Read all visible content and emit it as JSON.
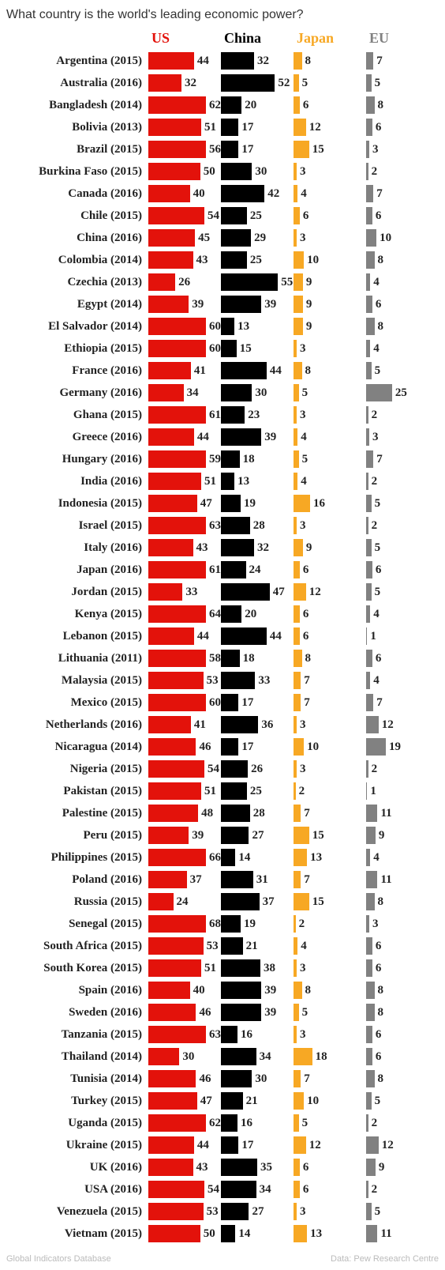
{
  "title": "What country is the world's leading economic power?",
  "footer_left": "Global Indicators Database",
  "footer_right": "Data: Pew Research Centre",
  "chart": {
    "type": "bar",
    "max_value": 70,
    "background_color": "#ffffff",
    "label_fontsize": 15,
    "header_fontsize": 18,
    "series": [
      {
        "key": "us",
        "label": "US",
        "color": "#e3120b",
        "header_color": "#e3120b"
      },
      {
        "key": "china",
        "label": "China",
        "color": "#000000",
        "header_color": "#000000"
      },
      {
        "key": "japan",
        "label": "Japan",
        "color": "#f7a824",
        "header_color": "#f7a824"
      },
      {
        "key": "eu",
        "label": "EU",
        "color": "#818181",
        "header_color": "#818181"
      }
    ],
    "rows": [
      {
        "label": "Argentina (2015)",
        "us": 44,
        "china": 32,
        "japan": 8,
        "eu": 7
      },
      {
        "label": "Australia (2016)",
        "us": 32,
        "china": 52,
        "japan": 5,
        "eu": 5
      },
      {
        "label": "Bangladesh (2014)",
        "us": 62,
        "china": 20,
        "japan": 6,
        "eu": 8
      },
      {
        "label": "Bolivia (2013)",
        "us": 51,
        "china": 17,
        "japan": 12,
        "eu": 6
      },
      {
        "label": "Brazil (2015)",
        "us": 56,
        "china": 17,
        "japan": 15,
        "eu": 3
      },
      {
        "label": "Burkina Faso (2015)",
        "us": 50,
        "china": 30,
        "japan": 3,
        "eu": 2
      },
      {
        "label": "Canada (2016)",
        "us": 40,
        "china": 42,
        "japan": 4,
        "eu": 7
      },
      {
        "label": "Chile (2015)",
        "us": 54,
        "china": 25,
        "japan": 6,
        "eu": 6
      },
      {
        "label": "China (2016)",
        "us": 45,
        "china": 29,
        "japan": 3,
        "eu": 10
      },
      {
        "label": "Colombia (2014)",
        "us": 43,
        "china": 25,
        "japan": 10,
        "eu": 8
      },
      {
        "label": "Czechia (2013)",
        "us": 26,
        "china": 55,
        "japan": 9,
        "eu": 4
      },
      {
        "label": "Egypt (2014)",
        "us": 39,
        "china": 39,
        "japan": 9,
        "eu": 6
      },
      {
        "label": "El Salvador (2014)",
        "us": 60,
        "china": 13,
        "japan": 9,
        "eu": 8
      },
      {
        "label": "Ethiopia (2015)",
        "us": 60,
        "china": 15,
        "japan": 3,
        "eu": 4
      },
      {
        "label": "France (2016)",
        "us": 41,
        "china": 44,
        "japan": 8,
        "eu": 5
      },
      {
        "label": "Germany (2016)",
        "us": 34,
        "china": 30,
        "japan": 5,
        "eu": 25
      },
      {
        "label": "Ghana (2015)",
        "us": 61,
        "china": 23,
        "japan": 3,
        "eu": 2
      },
      {
        "label": "Greece (2016)",
        "us": 44,
        "china": 39,
        "japan": 4,
        "eu": 3
      },
      {
        "label": "Hungary (2016)",
        "us": 59,
        "china": 18,
        "japan": 5,
        "eu": 7
      },
      {
        "label": "India (2016)",
        "us": 51,
        "china": 13,
        "japan": 4,
        "eu": 2
      },
      {
        "label": "Indonesia (2015)",
        "us": 47,
        "china": 19,
        "japan": 16,
        "eu": 5
      },
      {
        "label": "Israel (2015)",
        "us": 63,
        "china": 28,
        "japan": 3,
        "eu": 2
      },
      {
        "label": "Italy (2016)",
        "us": 43,
        "china": 32,
        "japan": 9,
        "eu": 5
      },
      {
        "label": "Japan (2016)",
        "us": 61,
        "china": 24,
        "japan": 6,
        "eu": 6
      },
      {
        "label": "Jordan (2015)",
        "us": 33,
        "china": 47,
        "japan": 12,
        "eu": 5
      },
      {
        "label": "Kenya (2015)",
        "us": 64,
        "china": 20,
        "japan": 6,
        "eu": 4
      },
      {
        "label": "Lebanon (2015)",
        "us": 44,
        "china": 44,
        "japan": 6,
        "eu": 1
      },
      {
        "label": "Lithuania (2011)",
        "us": 58,
        "china": 18,
        "japan": 8,
        "eu": 6
      },
      {
        "label": "Malaysia (2015)",
        "us": 53,
        "china": 33,
        "japan": 7,
        "eu": 4
      },
      {
        "label": "Mexico (2015)",
        "us": 60,
        "china": 17,
        "japan": 7,
        "eu": 7
      },
      {
        "label": "Netherlands (2016)",
        "us": 41,
        "china": 36,
        "japan": 3,
        "eu": 12
      },
      {
        "label": "Nicaragua (2014)",
        "us": 46,
        "china": 17,
        "japan": 10,
        "eu": 19
      },
      {
        "label": "Nigeria (2015)",
        "us": 54,
        "china": 26,
        "japan": 3,
        "eu": 2
      },
      {
        "label": "Pakistan (2015)",
        "us": 51,
        "china": 25,
        "japan": 2,
        "eu": 1
      },
      {
        "label": "Palestine (2015)",
        "us": 48,
        "china": 28,
        "japan": 7,
        "eu": 11
      },
      {
        "label": "Peru (2015)",
        "us": 39,
        "china": 27,
        "japan": 15,
        "eu": 9
      },
      {
        "label": "Philippines (2015)",
        "us": 66,
        "china": 14,
        "japan": 13,
        "eu": 4
      },
      {
        "label": "Poland (2016)",
        "us": 37,
        "china": 31,
        "japan": 7,
        "eu": 11
      },
      {
        "label": "Russia (2015)",
        "us": 24,
        "china": 37,
        "japan": 15,
        "eu": 8
      },
      {
        "label": "Senegal (2015)",
        "us": 68,
        "china": 19,
        "japan": 2,
        "eu": 3
      },
      {
        "label": "South Africa (2015)",
        "us": 53,
        "china": 21,
        "japan": 4,
        "eu": 6
      },
      {
        "label": "South Korea (2015)",
        "us": 51,
        "china": 38,
        "japan": 3,
        "eu": 6
      },
      {
        "label": "Spain (2016)",
        "us": 40,
        "china": 39,
        "japan": 8,
        "eu": 8
      },
      {
        "label": "Sweden (2016)",
        "us": 46,
        "china": 39,
        "japan": 5,
        "eu": 8
      },
      {
        "label": "Tanzania (2015)",
        "us": 63,
        "china": 16,
        "japan": 3,
        "eu": 6
      },
      {
        "label": "Thailand (2014)",
        "us": 30,
        "china": 34,
        "japan": 18,
        "eu": 6
      },
      {
        "label": "Tunisia (2014)",
        "us": 46,
        "china": 30,
        "japan": 7,
        "eu": 8
      },
      {
        "label": "Turkey (2015)",
        "us": 47,
        "china": 21,
        "japan": 10,
        "eu": 5
      },
      {
        "label": "Uganda (2015)",
        "us": 62,
        "china": 16,
        "japan": 5,
        "eu": 2
      },
      {
        "label": "Ukraine (2015)",
        "us": 44,
        "china": 17,
        "japan": 12,
        "eu": 12
      },
      {
        "label": "UK (2016)",
        "us": 43,
        "china": 35,
        "japan": 6,
        "eu": 9
      },
      {
        "label": "USA (2016)",
        "us": 54,
        "china": 34,
        "japan": 6,
        "eu": 2
      },
      {
        "label": "Venezuela (2015)",
        "us": 53,
        "china": 27,
        "japan": 3,
        "eu": 5
      },
      {
        "label": "Vietnam (2015)",
        "us": 50,
        "china": 14,
        "japan": 13,
        "eu": 11
      }
    ]
  }
}
